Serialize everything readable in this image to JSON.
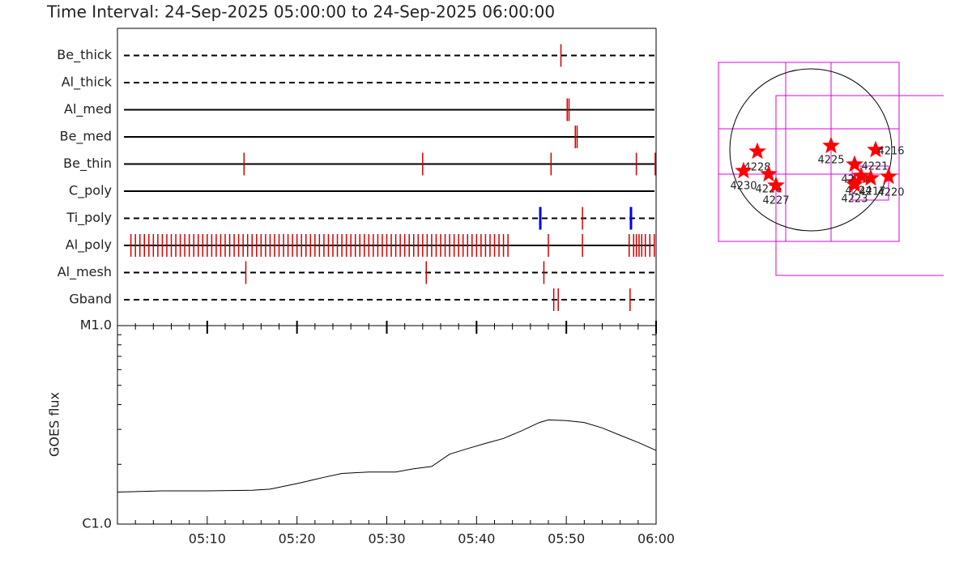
{
  "title": "Time Interval: 24-Sep-2025 05:00:00 to 24-Sep-2025 06:00:00",
  "chart_data": [
    {
      "type": "timeline",
      "xlim": [
        0,
        60
      ],
      "filters": [
        {
          "name": "Be_thick",
          "line": "dashed",
          "color": "#d00000",
          "values": [
            49.4
          ]
        },
        {
          "name": "Al_thick",
          "line": "dashed",
          "color": "#d00000",
          "values": []
        },
        {
          "name": "Al_med",
          "line": "solid",
          "color": "#d00000",
          "values": [
            50.1,
            50.3
          ]
        },
        {
          "name": "Be_med",
          "line": "solid",
          "color": "#d00000",
          "values": [
            51.0,
            51.2
          ]
        },
        {
          "name": "Be_thin",
          "line": "solid",
          "color": "#d00000",
          "values": [
            14.1,
            34.0,
            48.3,
            57.8,
            59.9
          ]
        },
        {
          "name": "C_poly",
          "line": "solid",
          "color": "#d00000",
          "values": []
        },
        {
          "name": "Ti_poly",
          "line": "dashed",
          "color": "#d00000",
          "colors": [
            "#0000ee",
            "#d00000",
            "#0000ee"
          ],
          "values": [
            47.1,
            51.8,
            57.2
          ]
        },
        {
          "name": "Al_poly",
          "line": "solid",
          "color": "#d00000",
          "values": [
            1.5,
            2,
            2.5,
            3,
            3.5,
            4,
            4.5,
            5,
            5.5,
            6,
            6.5,
            7,
            7.5,
            8,
            8.5,
            9,
            9.5,
            10,
            10.5,
            11,
            11.5,
            12,
            12.5,
            13,
            13.5,
            14,
            14.5,
            15,
            15.5,
            16,
            16.5,
            17,
            17.5,
            18,
            18.5,
            19,
            19.5,
            20,
            20.5,
            21,
            21.5,
            22,
            22.5,
            23,
            23.5,
            24,
            24.5,
            25,
            25.5,
            26,
            26.5,
            27,
            27.5,
            28,
            28.5,
            29,
            29.5,
            30,
            30.5,
            31,
            31.5,
            32,
            32.5,
            33,
            33.5,
            34,
            34.5,
            35,
            35.5,
            36,
            36.5,
            37,
            37.5,
            38,
            38.5,
            39,
            39.5,
            40,
            40.5,
            41,
            41.5,
            42,
            42.5,
            43,
            43.5,
            48.0,
            51.8,
            57.0,
            57.5,
            57.8,
            58.1,
            58.4,
            58.8,
            59.3,
            59.8
          ]
        },
        {
          "name": "Al_mesh",
          "line": "dashed",
          "color": "#d00000",
          "values": [
            14.3,
            34.4,
            47.5
          ]
        },
        {
          "name": "Gband",
          "line": "dashed",
          "color": "#d00000",
          "values": [
            48.6,
            49.1,
            57.1
          ]
        }
      ]
    },
    {
      "type": "line",
      "y_label": "GOES flux",
      "color": "#000000",
      "log_scale": true,
      "xlim": [
        0,
        60
      ],
      "ylim": [
        1e-06,
        1e-05
      ],
      "xticks": [
        {
          "value": 10,
          "label": "05:10"
        },
        {
          "value": 20,
          "label": "05:20"
        },
        {
          "value": 30,
          "label": "05:30"
        },
        {
          "value": 40,
          "label": "05:40"
        },
        {
          "value": 50,
          "label": "05:50"
        },
        {
          "value": 60,
          "label": "06:00"
        }
      ],
      "minor_xticks": [
        2,
        4,
        6,
        8,
        12,
        14,
        16,
        18,
        22,
        24,
        26,
        28,
        32,
        34,
        36,
        38,
        42,
        44,
        46,
        48,
        52,
        54,
        56,
        58
      ],
      "yticks": [
        {
          "value": 1e-06,
          "label": "C1.0"
        },
        {
          "value": 1e-05,
          "label": "M1.0"
        }
      ],
      "minor_yticks": [
        2e-06,
        3e-06,
        4e-06,
        5e-06,
        6e-06,
        7e-06,
        8e-06,
        9e-06
      ],
      "x": [
        0,
        5,
        10,
        15,
        17,
        20,
        23,
        25,
        28,
        31,
        33,
        35,
        37,
        39,
        41,
        43,
        45,
        47,
        48,
        50,
        52,
        54,
        56,
        58,
        60
      ],
      "values": [
        1.45e-06,
        1.47e-06,
        1.47e-06,
        1.48e-06,
        1.5e-06,
        1.6e-06,
        1.72e-06,
        1.8e-06,
        1.83e-06,
        1.83e-06,
        1.9e-06,
        1.95e-06,
        2.25e-06,
        2.4e-06,
        2.55e-06,
        2.7e-06,
        2.95e-06,
        3.25e-06,
        3.35e-06,
        3.32e-06,
        3.25e-06,
        3.05e-06,
        2.8e-06,
        2.58e-06,
        2.35e-06
      ]
    }
  ],
  "map": {
    "regions": [
      "4228",
      "4230",
      "4226",
      "4227",
      "4225",
      "4221",
      "4216",
      "4229",
      "4224",
      "4223",
      "4217",
      "4220"
    ]
  }
}
